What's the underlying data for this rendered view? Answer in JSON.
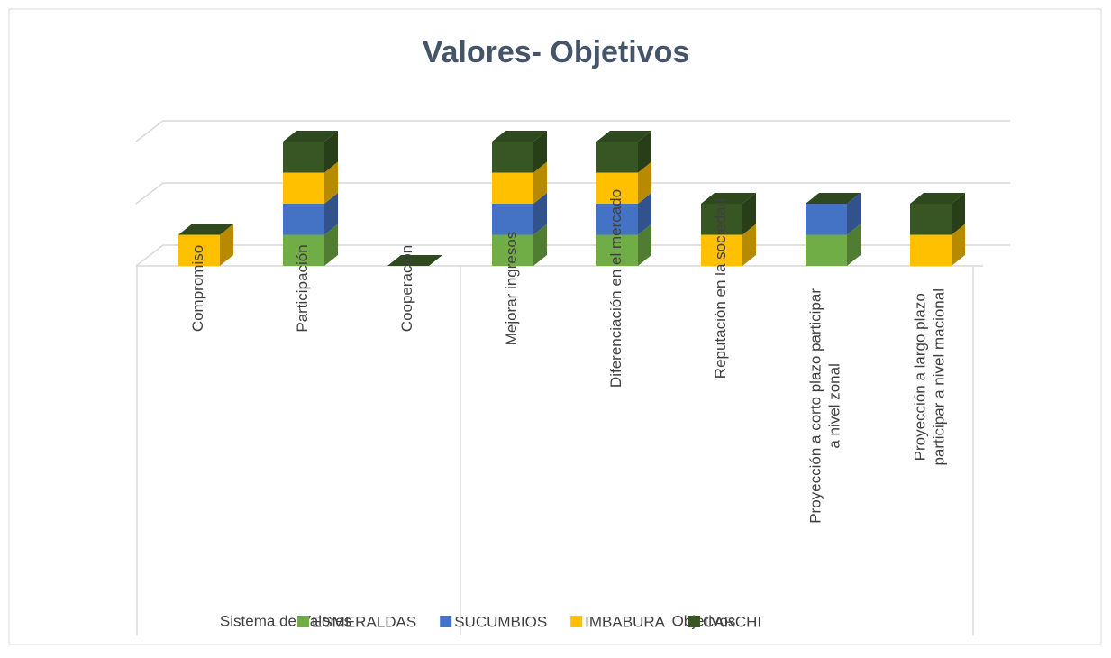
{
  "chart_data": {
    "type": "bar3d_stacked",
    "title": "Valores- Objetivos",
    "categories": [
      "Compromiso",
      "Participación",
      "Cooperación",
      "Mejorar ingresos",
      "Diferenciación en el mercado",
      "Reputación en la sociedad",
      "Proyección a corto plazo participar\na nivel zonal",
      "Proyección a largo  plazo\nparticipar a nivel macional"
    ],
    "group_labels": [
      "Sistema de Valores",
      "Objetivos"
    ],
    "series": [
      {
        "name": "ESMERALDAS",
        "color": "#70ad47",
        "values": [
          0,
          1,
          0,
          1,
          1,
          0,
          1,
          0
        ]
      },
      {
        "name": "SUCUMBIOS",
        "color": "#4472c4",
        "values": [
          0,
          1,
          0,
          1,
          1,
          0,
          1,
          0
        ]
      },
      {
        "name": "IMBABURA",
        "color": "#ffc000",
        "values": [
          1,
          1,
          0,
          1,
          1,
          1,
          0,
          1
        ]
      },
      {
        "name": "CARCHI",
        "color": "#375623",
        "values": [
          0,
          1,
          0,
          1,
          1,
          1,
          0,
          1
        ]
      }
    ],
    "ylim": [
      0,
      4
    ],
    "yticks": [
      0,
      2,
      4
    ],
    "grid": true
  }
}
